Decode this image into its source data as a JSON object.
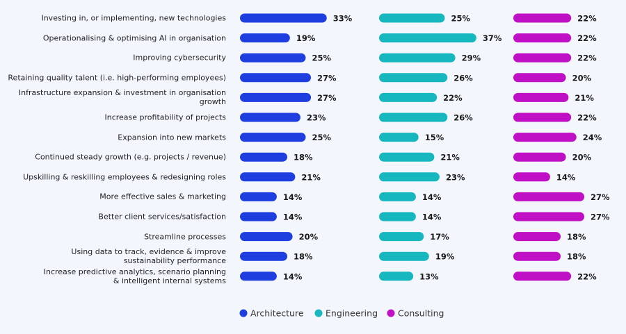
{
  "chart_data": {
    "type": "bar",
    "orientation": "horizontal",
    "categories": [
      "Investing in, or implementing, new technologies",
      "Operationalising & optimising AI in organisation",
      "Improving cybersecurity",
      "Retaining quality talent (i.e. high-performing employees)",
      "Infrastructure expansion & investment in organisation growth",
      "Increase profitability of projects",
      "Expansion into new markets",
      "Continued steady growth (e.g. projects / revenue)",
      "Upskilling & reskilling employees & redesigning roles",
      "More effective sales & marketing",
      "Better client services/satisfaction",
      "Streamline processes",
      "Using data to track, evidence & improve\nsustainability performance",
      "Increase predictive analytics, scenario planning\n& intelligent internal systems"
    ],
    "series": [
      {
        "name": "Architecture",
        "color": "#1f3ee0",
        "values": [
          33,
          19,
          25,
          27,
          27,
          23,
          25,
          18,
          21,
          14,
          14,
          20,
          18,
          14
        ],
        "value_labels": [
          "33%",
          "19%",
          "25%",
          "27%",
          "27%",
          "23%",
          "25%",
          "18%",
          "21%",
          "14%",
          "14%",
          "20%",
          "18%",
          "14%"
        ]
      },
      {
        "name": "Engineering",
        "color": "#17b7bf",
        "values": [
          25,
          37,
          29,
          26,
          22,
          26,
          15,
          21,
          23,
          14,
          14,
          17,
          19,
          13
        ],
        "value_labels": [
          "25%",
          "37%",
          "29%",
          "26%",
          "22%",
          "26%",
          "15%",
          "21%",
          "23%",
          "14%",
          "14%",
          "17%",
          "19%",
          "13%"
        ]
      },
      {
        "name": "Consulting",
        "color": "#c010c6",
        "values": [
          22,
          22,
          22,
          20,
          21,
          22,
          24,
          20,
          14,
          27,
          27,
          18,
          18,
          22
        ],
        "value_labels": [
          "22%",
          "22%",
          "22%",
          "20%",
          "21%",
          "22%",
          "24%",
          "20%",
          "14%",
          "27%",
          "27%",
          "18%",
          "18%",
          "22%"
        ]
      }
    ],
    "legend": "bottom"
  }
}
